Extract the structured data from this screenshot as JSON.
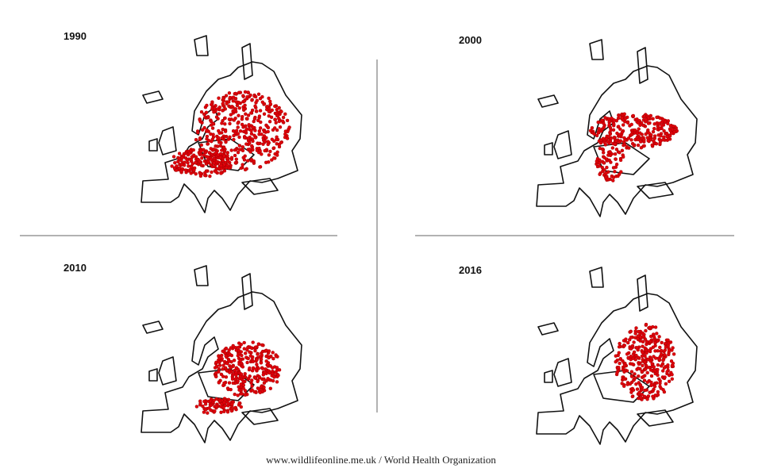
{
  "panels": [
    {
      "label": "1990"
    },
    {
      "label": "2000"
    },
    {
      "label": "2010"
    },
    {
      "label": "2016"
    }
  ],
  "credit": "www.wildlifeonline.me.uk / World Health Organization"
}
